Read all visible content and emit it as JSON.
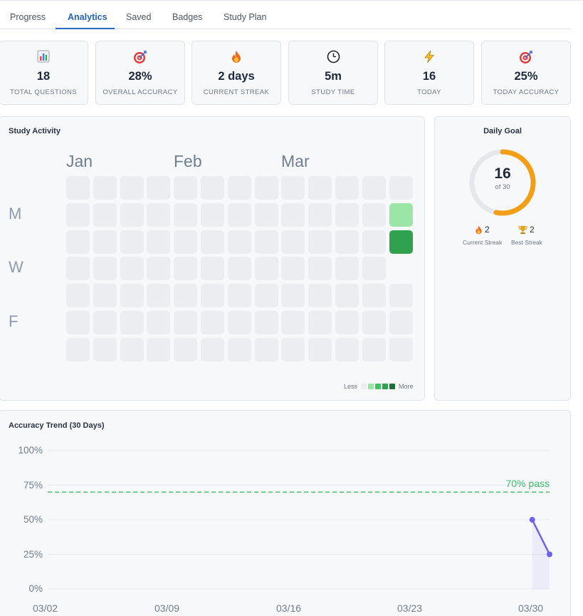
{
  "tabs": [
    {
      "label": "Progress"
    },
    {
      "label": "Analytics"
    },
    {
      "label": "Saved"
    },
    {
      "label": "Badges"
    },
    {
      "label": "Study Plan"
    }
  ],
  "active_tab": "Analytics",
  "stats": [
    {
      "icon": "bar-chart-icon",
      "value": "18",
      "label": "TOTAL QUESTIONS"
    },
    {
      "icon": "target-icon",
      "value": "28%",
      "label": "OVERALL ACCURACY"
    },
    {
      "icon": "fire-icon",
      "value": "2 days",
      "label": "CURRENT STREAK"
    },
    {
      "icon": "clock-icon",
      "value": "5m",
      "label": "STUDY TIME"
    },
    {
      "icon": "lightning-icon",
      "value": "16",
      "label": "TODAY"
    },
    {
      "icon": "target-icon",
      "value": "25%",
      "label": "TODAY ACCURACY"
    }
  ],
  "activity": {
    "title": "Study Activity",
    "months": [
      "Jan",
      "Feb",
      "Mar"
    ],
    "day_labels": [
      "M",
      "W",
      "F"
    ],
    "weeks": 13,
    "active_days": [
      {
        "week": 12,
        "day": 1,
        "level": 1
      },
      {
        "week": 12,
        "day": 2,
        "level": 2
      }
    ],
    "future_days": [
      {
        "week": 12,
        "day": 3
      }
    ],
    "legend_less": "Less",
    "legend_more": "More",
    "legend_colors": [
      "#ebedf0",
      "#9be5a6",
      "#40c463",
      "#30a14e",
      "#216e39"
    ]
  },
  "daily_goal": {
    "title": "Daily Goal",
    "current": "16",
    "target_text": "of 30",
    "progress": 0.5333,
    "ring_color": "#f29e17",
    "track_color": "#e5e7eb",
    "current_streak": "2",
    "current_streak_label": "Current Streak",
    "best_streak": "2",
    "best_streak_label": "Best Streak"
  },
  "accuracy_trend": {
    "title": "Accuracy Trend (30 Days)",
    "pass_label": "70% pass",
    "pass_color": "#3fbf6a",
    "line_color": "#6c63e8"
  },
  "chart_data": {
    "type": "line",
    "title": "Accuracy Trend (30 Days)",
    "x_tick_labels": [
      "03/02",
      "03/09",
      "03/16",
      "03/23",
      "03/30"
    ],
    "y_tick_labels": [
      "100%",
      "75%",
      "50%",
      "25%",
      "0%"
    ],
    "ylim": [
      0,
      100
    ],
    "x_range_days": [
      0,
      29
    ],
    "series": [
      {
        "x_days": [
          28,
          29
        ],
        "values": [
          50,
          25
        ]
      }
    ],
    "reference_line": {
      "value": 70,
      "label": "70% pass"
    },
    "grid": true
  }
}
